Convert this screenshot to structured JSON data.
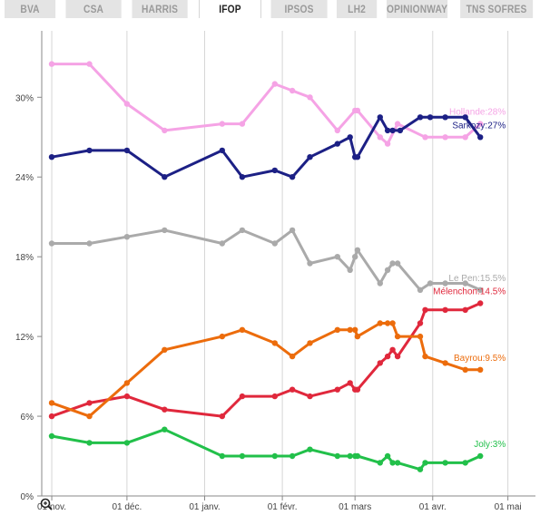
{
  "tabs": [
    {
      "label": "BVA",
      "active": false
    },
    {
      "label": "CSA",
      "active": false
    },
    {
      "label": "HARRIS",
      "active": false
    },
    {
      "label": "IFOP",
      "active": true
    },
    {
      "label": "IPSOS",
      "active": false
    },
    {
      "label": "LH2",
      "active": false
    },
    {
      "label": "OPINIONWAY",
      "active": false
    },
    {
      "label": "TNS SOFRES",
      "active": false
    }
  ],
  "zoom_icon": "zoom-icon",
  "chart_data": {
    "type": "line",
    "title": "",
    "xlabel": "",
    "ylabel": "",
    "x_ticks": [
      {
        "label": "01 nov.",
        "date": "2011-11-01"
      },
      {
        "label": "01 déc.",
        "date": "2011-12-01"
      },
      {
        "label": "01 janv.",
        "date": "2012-01-01"
      },
      {
        "label": "01 févr.",
        "date": "2012-02-01"
      },
      {
        "label": "01 mars",
        "date": "2012-03-01"
      },
      {
        "label": "01 avr.",
        "date": "2012-04-01"
      },
      {
        "label": "01 mai",
        "date": "2012-05-01"
      }
    ],
    "y_ticks": [
      {
        "label": "0%",
        "value": 0
      },
      {
        "label": "6%",
        "value": 6
      },
      {
        "label": "12%",
        "value": 12
      },
      {
        "label": "18%",
        "value": 18
      },
      {
        "label": "24%",
        "value": 24
      },
      {
        "label": "30%",
        "value": 30
      }
    ],
    "ylim": [
      0,
      35
    ],
    "xlim": [
      "2011-10-28",
      "2012-05-12"
    ],
    "grid": "vertical",
    "series": [
      {
        "label": "Hollande:28%",
        "color": "#f5a3e5",
        "points": [
          [
            "2011-11-01",
            32.5
          ],
          [
            "2011-11-16",
            32.5
          ],
          [
            "2011-12-01",
            29.5
          ],
          [
            "2011-12-16",
            27.5
          ],
          [
            "2012-01-08",
            28
          ],
          [
            "2012-01-16",
            28
          ],
          [
            "2012-01-29",
            31
          ],
          [
            "2012-02-05",
            30.5
          ],
          [
            "2012-02-12",
            30
          ],
          [
            "2012-02-23",
            27.5
          ],
          [
            "2012-03-01",
            29
          ],
          [
            "2012-03-02",
            29
          ],
          [
            "2012-03-11",
            27
          ],
          [
            "2012-03-14",
            26.5
          ],
          [
            "2012-03-18",
            28
          ],
          [
            "2012-03-29",
            27
          ],
          [
            "2012-04-06",
            27
          ],
          [
            "2012-04-14",
            27
          ],
          [
            "2012-04-20",
            28
          ]
        ]
      },
      {
        "label": "Sarkozy:27%",
        "color": "#1c2085",
        "points": [
          [
            "2011-11-01",
            25.5
          ],
          [
            "2011-11-16",
            26
          ],
          [
            "2011-12-01",
            26
          ],
          [
            "2011-12-16",
            24
          ],
          [
            "2012-01-08",
            26
          ],
          [
            "2012-01-16",
            24
          ],
          [
            "2012-01-29",
            24.5
          ],
          [
            "2012-02-05",
            24
          ],
          [
            "2012-02-12",
            25.5
          ],
          [
            "2012-02-23",
            26.5
          ],
          [
            "2012-02-28",
            27
          ],
          [
            "2012-03-01",
            25.5
          ],
          [
            "2012-03-02",
            25.5
          ],
          [
            "2012-03-11",
            28.5
          ],
          [
            "2012-03-14",
            27.5
          ],
          [
            "2012-03-16",
            27.5
          ],
          [
            "2012-03-19",
            27.5
          ],
          [
            "2012-03-27",
            28.5
          ],
          [
            "2012-03-31",
            28.5
          ],
          [
            "2012-04-06",
            28.5
          ],
          [
            "2012-04-14",
            28.5
          ],
          [
            "2012-04-20",
            27
          ]
        ]
      },
      {
        "label": "Le Pen:15.5%",
        "color": "#aaaaaa",
        "points": [
          [
            "2011-11-01",
            19
          ],
          [
            "2011-11-16",
            19
          ],
          [
            "2011-12-01",
            19.5
          ],
          [
            "2011-12-16",
            20
          ],
          [
            "2012-01-08",
            19
          ],
          [
            "2012-01-16",
            20
          ],
          [
            "2012-01-29",
            19
          ],
          [
            "2012-02-05",
            20
          ],
          [
            "2012-02-12",
            17.5
          ],
          [
            "2012-02-23",
            18
          ],
          [
            "2012-02-28",
            17
          ],
          [
            "2012-03-01",
            18
          ],
          [
            "2012-03-02",
            18.5
          ],
          [
            "2012-03-11",
            16
          ],
          [
            "2012-03-14",
            17
          ],
          [
            "2012-03-16",
            17.5
          ],
          [
            "2012-03-18",
            17.5
          ],
          [
            "2012-03-27",
            15.5
          ],
          [
            "2012-03-31",
            16
          ],
          [
            "2012-04-06",
            16
          ],
          [
            "2012-04-14",
            16
          ],
          [
            "2012-04-20",
            15.5
          ]
        ]
      },
      {
        "label": "Mélenchon:14.5%",
        "color": "#e0283c",
        "points": [
          [
            "2011-11-01",
            6
          ],
          [
            "2011-11-16",
            7
          ],
          [
            "2011-12-01",
            7.5
          ],
          [
            "2011-12-16",
            6.5
          ],
          [
            "2012-01-08",
            6
          ],
          [
            "2012-01-16",
            7.5
          ],
          [
            "2012-01-29",
            7.5
          ],
          [
            "2012-02-05",
            8
          ],
          [
            "2012-02-12",
            7.5
          ],
          [
            "2012-02-23",
            8
          ],
          [
            "2012-02-28",
            8.5
          ],
          [
            "2012-03-01",
            8
          ],
          [
            "2012-03-02",
            8
          ],
          [
            "2012-03-11",
            10
          ],
          [
            "2012-03-14",
            10.5
          ],
          [
            "2012-03-16",
            11
          ],
          [
            "2012-03-18",
            10.5
          ],
          [
            "2012-03-27",
            13
          ],
          [
            "2012-03-29",
            14
          ],
          [
            "2012-04-06",
            14
          ],
          [
            "2012-04-14",
            14
          ],
          [
            "2012-04-20",
            14.5
          ]
        ]
      },
      {
        "label": "Bayrou:9.5%",
        "color": "#ec6c0c",
        "points": [
          [
            "2011-11-01",
            7
          ],
          [
            "2011-11-16",
            6
          ],
          [
            "2011-12-01",
            8.5
          ],
          [
            "2011-12-16",
            11
          ],
          [
            "2012-01-08",
            12
          ],
          [
            "2012-01-16",
            12.5
          ],
          [
            "2012-01-29",
            11.5
          ],
          [
            "2012-02-05",
            10.5
          ],
          [
            "2012-02-12",
            11.5
          ],
          [
            "2012-02-23",
            12.5
          ],
          [
            "2012-02-28",
            12.5
          ],
          [
            "2012-03-01",
            12.5
          ],
          [
            "2012-03-02",
            12
          ],
          [
            "2012-03-11",
            13
          ],
          [
            "2012-03-14",
            13
          ],
          [
            "2012-03-16",
            13
          ],
          [
            "2012-03-18",
            12
          ],
          [
            "2012-03-27",
            12
          ],
          [
            "2012-03-29",
            10.5
          ],
          [
            "2012-04-06",
            10
          ],
          [
            "2012-04-14",
            9.5
          ],
          [
            "2012-04-20",
            9.5
          ]
        ]
      },
      {
        "label": "Joly:3%",
        "color": "#22c04a",
        "points": [
          [
            "2011-11-01",
            4.5
          ],
          [
            "2011-11-16",
            4
          ],
          [
            "2011-12-01",
            4
          ],
          [
            "2011-12-16",
            5
          ],
          [
            "2012-01-08",
            3
          ],
          [
            "2012-01-16",
            3
          ],
          [
            "2012-01-29",
            3
          ],
          [
            "2012-02-05",
            3
          ],
          [
            "2012-02-12",
            3.5
          ],
          [
            "2012-02-23",
            3
          ],
          [
            "2012-02-28",
            3
          ],
          [
            "2012-03-01",
            3
          ],
          [
            "2012-03-02",
            3
          ],
          [
            "2012-03-11",
            2.5
          ],
          [
            "2012-03-14",
            3
          ],
          [
            "2012-03-16",
            2.5
          ],
          [
            "2012-03-18",
            2.5
          ],
          [
            "2012-03-27",
            2
          ],
          [
            "2012-03-29",
            2.5
          ],
          [
            "2012-04-06",
            2.5
          ],
          [
            "2012-04-14",
            2.5
          ],
          [
            "2012-04-20",
            3
          ]
        ]
      }
    ]
  }
}
